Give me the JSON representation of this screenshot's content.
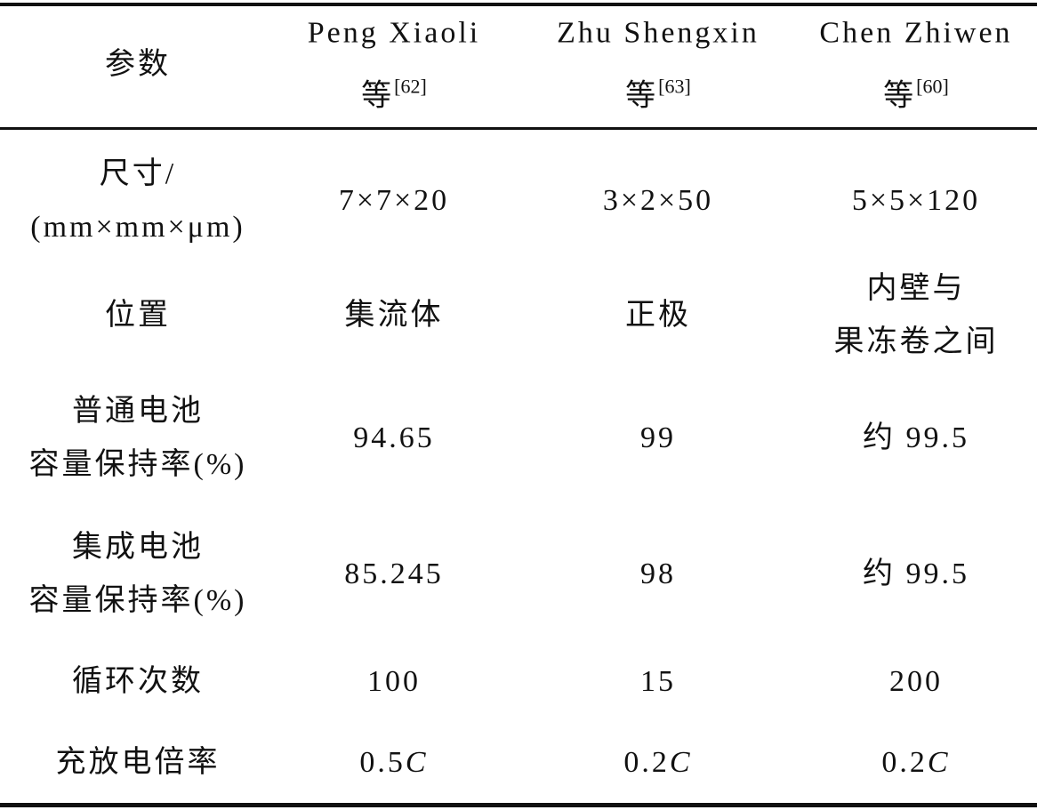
{
  "table": {
    "header": [
      {
        "name": "参数"
      },
      {
        "name": "Peng Xiaoli",
        "suffix": "等",
        "ref": "[62]"
      },
      {
        "name": "Zhu Shengxin",
        "suffix": "等",
        "ref": "[63]"
      },
      {
        "name": "Chen Zhiwen",
        "suffix": "等",
        "ref": "[60]"
      }
    ],
    "rows": [
      {
        "label": [
          "尺寸/",
          "(mm×mm×μm)"
        ],
        "cells": [
          [
            "7×7×20"
          ],
          [
            "3×2×50"
          ],
          [
            "5×5×120"
          ]
        ]
      },
      {
        "label": [
          "位置"
        ],
        "cells": [
          [
            "集流体"
          ],
          [
            "正极"
          ],
          [
            "内壁与",
            "果冻卷之间"
          ]
        ]
      },
      {
        "label": [
          "普通电池",
          "容量保持率(%)"
        ],
        "cells": [
          [
            "94.65"
          ],
          [
            "99"
          ],
          [
            "约 99.5"
          ]
        ]
      },
      {
        "label": [
          "集成电池",
          "容量保持率(%)"
        ],
        "cells": [
          [
            "85.245"
          ],
          [
            "98"
          ],
          [
            "约 99.5"
          ]
        ]
      },
      {
        "label": [
          "循环次数"
        ],
        "cells": [
          [
            "100"
          ],
          [
            "15"
          ],
          [
            "200"
          ]
        ]
      },
      {
        "label": [
          "充放电倍率"
        ],
        "cells": [
          [
            {
              "text": "0.5",
              "italic": "C"
            }
          ],
          [
            {
              "text": "0.2",
              "italic": "C"
            }
          ],
          [
            {
              "text": "0.2",
              "italic": "C"
            }
          ]
        ]
      }
    ]
  }
}
